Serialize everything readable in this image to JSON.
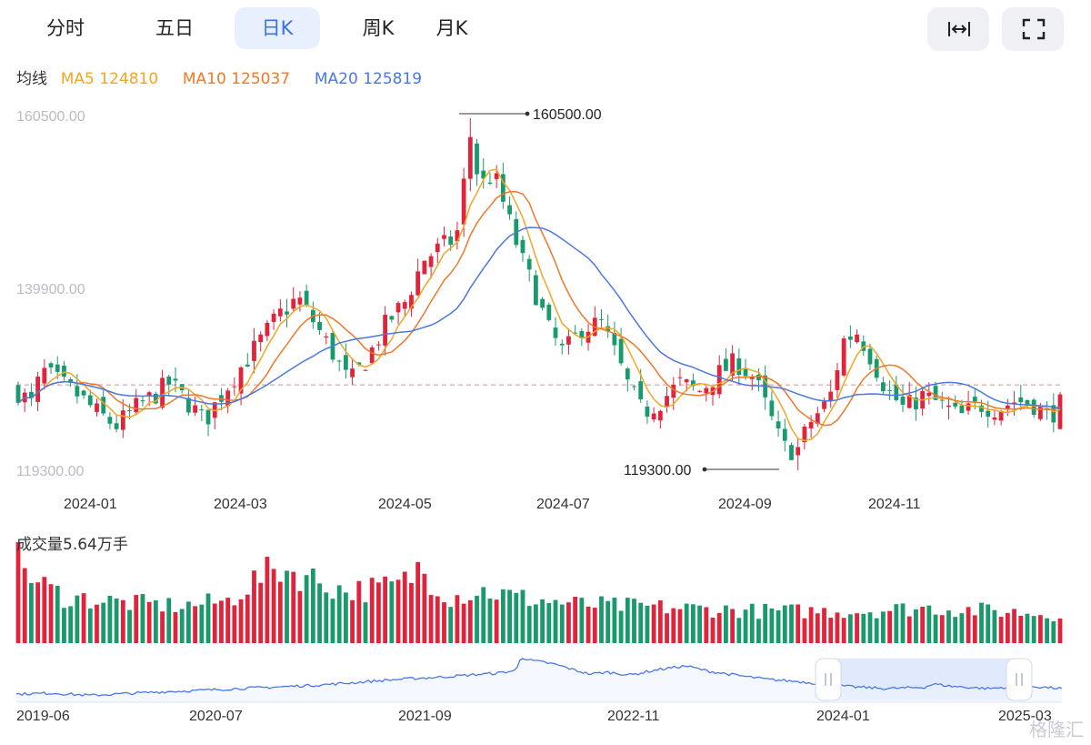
{
  "tabs": [
    {
      "label": "分时",
      "active": false
    },
    {
      "label": "五日",
      "active": false
    },
    {
      "label": "日K",
      "active": true
    },
    {
      "label": "周K",
      "active": false
    },
    {
      "label": "月K",
      "active": false
    }
  ],
  "toolbar": {
    "fit_icon": "expand-horizontal-icon",
    "fullscreen_icon": "fullscreen-icon"
  },
  "legend": {
    "label": "均线",
    "ma5": "MA5 124810",
    "ma10": "MA10 125037",
    "ma20": "MA20 125819"
  },
  "volume": {
    "label": "成交量5.64万手"
  },
  "watermark": "格隆汇",
  "colors": {
    "up": "#e0243c",
    "down": "#1a9a6c",
    "ma5": "#f2a625",
    "ma10": "#f0782a",
    "ma20": "#4a78e0",
    "accent": "#3a6ff0"
  },
  "chart_data": [
    {
      "type": "candlestick",
      "y_ticks": [
        "160500.00",
        "139900.00",
        "119300.00"
      ],
      "ylim": [
        119300,
        160500
      ],
      "x_ticks": [
        "2024-01",
        "2024-03",
        "2024-05",
        "2024-07",
        "2024-09",
        "2024-11"
      ],
      "annotations": {
        "max_label": "160500.00",
        "min_label": "119300.00"
      },
      "reference_line": 129300,
      "close_path": [
        [
          0,
          128500
        ],
        [
          6,
          127000
        ],
        [
          10,
          131000
        ],
        [
          18,
          129500
        ],
        [
          26,
          128000
        ],
        [
          34,
          126000
        ],
        [
          42,
          124500
        ],
        [
          50,
          126500
        ],
        [
          58,
          128000
        ],
        [
          65,
          129500
        ],
        [
          72,
          127500
        ],
        [
          80,
          125000
        ],
        [
          88,
          128500
        ],
        [
          96,
          131500
        ],
        [
          104,
          134500
        ],
        [
          112,
          137500
        ],
        [
          120,
          139500
        ],
        [
          126,
          137000
        ],
        [
          134,
          133500
        ],
        [
          142,
          129500
        ],
        [
          150,
          132500
        ],
        [
          158,
          136500
        ],
        [
          166,
          139000
        ],
        [
          174,
          144000
        ],
        [
          182,
          145500
        ],
        [
          188,
          146500
        ],
        [
          194,
          158500
        ],
        [
          198,
          152500
        ],
        [
          204,
          154000
        ],
        [
          210,
          149000
        ],
        [
          216,
          144000
        ],
        [
          222,
          140000
        ],
        [
          228,
          135500
        ],
        [
          234,
          133000
        ],
        [
          242,
          136000
        ],
        [
          250,
          136500
        ],
        [
          256,
          133000
        ],
        [
          262,
          129000
        ],
        [
          268,
          126000
        ],
        [
          276,
          127500
        ],
        [
          284,
          129500
        ],
        [
          292,
          128500
        ],
        [
          300,
          130500
        ],
        [
          308,
          132000
        ],
        [
          316,
          130000
        ],
        [
          322,
          126000
        ],
        [
          328,
          122000
        ],
        [
          334,
          121500
        ],
        [
          340,
          125000
        ],
        [
          348,
          127500
        ],
        [
          354,
          134500
        ],
        [
          360,
          135500
        ],
        [
          366,
          132500
        ],
        [
          372,
          129000
        ],
        [
          380,
          126500
        ],
        [
          388,
          128000
        ],
        [
          396,
          127000
        ],
        [
          404,
          125500
        ],
        [
          412,
          127000
        ],
        [
          420,
          126500
        ],
        [
          428,
          127500
        ],
        [
          436,
          127000
        ],
        [
          442,
          125500
        ],
        [
          447,
          127000
        ]
      ],
      "series": [
        {
          "name": "MA5",
          "last": 124810
        },
        {
          "name": "MA10",
          "last": 125037
        },
        {
          "name": "MA20",
          "last": 125819
        }
      ]
    },
    {
      "type": "bar",
      "name": "volume",
      "label": "成交量5.64万手",
      "ylim": [
        0,
        120
      ],
      "profile": [
        [
          0,
          100
        ],
        [
          8,
          72
        ],
        [
          20,
          55
        ],
        [
          45,
          48
        ],
        [
          70,
          44
        ],
        [
          90,
          50
        ],
        [
          100,
          72
        ],
        [
          112,
          90
        ],
        [
          125,
          78
        ],
        [
          140,
          62
        ],
        [
          155,
          65
        ],
        [
          165,
          70
        ],
        [
          172,
          90
        ],
        [
          185,
          55
        ],
        [
          200,
          62
        ],
        [
          215,
          54
        ],
        [
          240,
          46
        ],
        [
          280,
          42
        ],
        [
          320,
          38
        ],
        [
          360,
          38
        ],
        [
          390,
          42
        ],
        [
          420,
          38
        ],
        [
          447,
          34
        ]
      ]
    },
    {
      "type": "area",
      "name": "overview",
      "x_ticks": [
        "2019-06",
        "2020-07",
        "2021-09",
        "2022-11",
        "2024-01",
        "2025-03"
      ],
      "ylim": [
        0,
        100
      ],
      "profile": [
        [
          0,
          18
        ],
        [
          40,
          20
        ],
        [
          80,
          15
        ],
        [
          120,
          19
        ],
        [
          160,
          23
        ],
        [
          200,
          26
        ],
        [
          240,
          30
        ],
        [
          290,
          34
        ],
        [
          330,
          38
        ],
        [
          360,
          42
        ],
        [
          400,
          48
        ],
        [
          430,
          52
        ],
        [
          460,
          55
        ],
        [
          495,
          60
        ],
        [
          525,
          64
        ],
        [
          545,
          70
        ],
        [
          550,
          100
        ],
        [
          560,
          92
        ],
        [
          575,
          88
        ],
        [
          590,
          82
        ],
        [
          610,
          70
        ],
        [
          625,
          62
        ],
        [
          645,
          66
        ],
        [
          670,
          60
        ],
        [
          700,
          72
        ],
        [
          730,
          80
        ],
        [
          755,
          68
        ],
        [
          790,
          58
        ],
        [
          820,
          50
        ],
        [
          850,
          46
        ],
        [
          880,
          40
        ],
        [
          910,
          34
        ],
        [
          950,
          30
        ],
        [
          990,
          33
        ],
        [
          1000,
          40
        ],
        [
          1020,
          35
        ],
        [
          1060,
          30
        ],
        [
          1100,
          36
        ],
        [
          1140,
          30
        ]
      ],
      "window": {
        "start_label": "2024-01",
        "end_label": "2025-03"
      }
    }
  ]
}
